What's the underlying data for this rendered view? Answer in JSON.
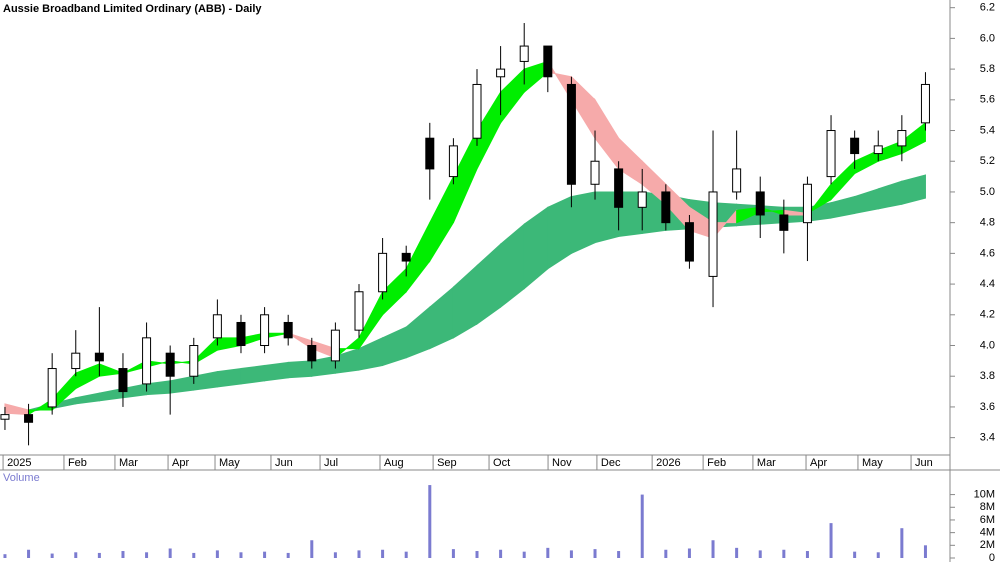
{
  "chart_data": {
    "type": "candlestick",
    "title": "Aussie Broadband Limited Ordinary (ABB) - Daily",
    "volume_label": "Volume",
    "categories": [
      null,
      null,
      null,
      null,
      null,
      null,
      null,
      null,
      null,
      null,
      null,
      null,
      null,
      null,
      null,
      null,
      null,
      null,
      null,
      null,
      null,
      null,
      null,
      null,
      null,
      null,
      null,
      null,
      null,
      null,
      null,
      null,
      null,
      null,
      null,
      null,
      null,
      null,
      null,
      null
    ],
    "open": [
      3.52,
      3.55,
      3.6,
      3.85,
      3.95,
      3.85,
      3.75,
      3.95,
      3.8,
      4.05,
      4.15,
      4.0,
      4.15,
      4.0,
      3.9,
      4.1,
      4.35,
      4.6,
      5.35,
      5.1,
      5.35,
      5.75,
      5.85,
      5.95,
      5.7,
      5.05,
      5.15,
      4.9,
      5.0,
      4.8,
      4.45,
      5.0,
      5.0,
      4.85,
      4.8,
      5.1,
      5.35,
      5.25,
      5.3,
      5.45
    ],
    "high": [
      3.6,
      3.62,
      3.95,
      4.1,
      4.25,
      3.95,
      4.15,
      4.0,
      4.05,
      4.3,
      4.2,
      4.25,
      4.2,
      4.05,
      4.15,
      4.4,
      4.7,
      4.65,
      5.45,
      5.35,
      5.8,
      5.95,
      6.1,
      5.95,
      5.75,
      5.4,
      5.2,
      5.15,
      5.05,
      4.85,
      5.4,
      5.4,
      5.1,
      4.95,
      5.1,
      5.5,
      5.4,
      5.4,
      5.5,
      5.78
    ],
    "low": [
      3.45,
      3.35,
      3.55,
      3.8,
      3.8,
      3.6,
      3.7,
      3.55,
      3.75,
      4.0,
      3.95,
      3.95,
      4.0,
      3.85,
      3.85,
      4.05,
      4.3,
      4.45,
      4.95,
      5.05,
      5.3,
      5.5,
      5.7,
      5.65,
      4.9,
      4.95,
      4.75,
      4.75,
      4.75,
      4.5,
      4.25,
      4.95,
      4.7,
      4.6,
      4.55,
      5.05,
      5.15,
      5.2,
      5.2,
      5.4
    ],
    "close": [
      3.55,
      3.5,
      3.85,
      3.95,
      3.9,
      3.7,
      4.05,
      3.8,
      4.0,
      4.2,
      4.0,
      4.2,
      4.05,
      3.9,
      4.1,
      4.35,
      4.6,
      4.55,
      5.15,
      5.3,
      5.7,
      5.8,
      5.95,
      5.75,
      5.05,
      5.2,
      4.9,
      5.0,
      4.8,
      4.55,
      5.0,
      5.15,
      4.85,
      4.75,
      5.05,
      5.4,
      5.25,
      5.3,
      5.4,
      5.7
    ],
    "fast_band": {
      "up_color": "#00ee00",
      "down_color": "#f6aaaa",
      "a": [
        3.56,
        3.55,
        3.65,
        3.82,
        3.88,
        3.82,
        3.9,
        3.88,
        3.9,
        4.05,
        4.05,
        4.08,
        4.08,
        3.98,
        3.92,
        4.05,
        4.35,
        4.5,
        4.8,
        5.1,
        5.4,
        5.65,
        5.8,
        5.85,
        5.6,
        5.35,
        5.15,
        5.05,
        4.92,
        4.75,
        4.7,
        4.88,
        4.9,
        4.85,
        4.85,
        5.05,
        5.2,
        5.27,
        5.33,
        5.45
      ],
      "b": [
        3.62,
        3.58,
        3.58,
        3.72,
        3.8,
        3.82,
        3.86,
        3.9,
        3.88,
        3.97,
        4.0,
        4.05,
        4.08,
        4.03,
        3.98,
        3.98,
        4.2,
        4.35,
        4.55,
        4.8,
        5.15,
        5.45,
        5.65,
        5.78,
        5.75,
        5.6,
        5.35,
        5.2,
        5.05,
        4.9,
        4.8,
        4.8,
        4.87,
        4.88,
        4.86,
        4.95,
        5.12,
        5.2,
        5.25,
        5.33
      ]
    },
    "slow_band": {
      "up_color": "#3cb878",
      "down_color": "#f26522",
      "a": [
        3.57,
        3.58,
        3.62,
        3.66,
        3.69,
        3.72,
        3.75,
        3.77,
        3.8,
        3.83,
        3.85,
        3.87,
        3.89,
        3.9,
        3.93,
        3.98,
        4.05,
        4.12,
        4.25,
        4.38,
        4.52,
        4.66,
        4.79,
        4.9,
        4.97,
        5.0,
        5.0,
        5.0,
        4.98,
        4.95,
        4.93,
        4.92,
        4.91,
        4.9,
        4.9,
        4.93,
        4.97,
        5.02,
        5.07,
        5.11
      ],
      "b": [
        3.56,
        3.57,
        3.59,
        3.62,
        3.64,
        3.66,
        3.68,
        3.69,
        3.71,
        3.73,
        3.75,
        3.77,
        3.79,
        3.8,
        3.82,
        3.84,
        3.87,
        3.92,
        3.98,
        4.05,
        4.14,
        4.25,
        4.37,
        4.5,
        4.6,
        4.67,
        4.71,
        4.73,
        4.75,
        4.76,
        4.77,
        4.78,
        4.79,
        4.8,
        4.81,
        4.83,
        4.86,
        4.89,
        4.92,
        4.96
      ]
    },
    "volume": [
      600000,
      1300000,
      700000,
      900000,
      800000,
      1100000,
      900000,
      1500000,
      800000,
      1200000,
      900000,
      1000000,
      800000,
      2800000,
      900000,
      1200000,
      1300000,
      1000000,
      11500000,
      1400000,
      1100000,
      1300000,
      1000000,
      1600000,
      1200000,
      1400000,
      1100000,
      10000000,
      1300000,
      1500000,
      2800000,
      1600000,
      1200000,
      1300000,
      1100000,
      5500000,
      1000000,
      900000,
      4700000,
      2000000
    ],
    "volume_color": "#7b7bd0",
    "xlim": [
      -0.21,
      40.04
    ],
    "xticks": [
      {
        "value": -0.08,
        "label": "2025"
      },
      {
        "value": 2.5,
        "label": "Feb"
      },
      {
        "value": 4.66,
        "label": "Mar"
      },
      {
        "value": 6.91,
        "label": "Apr"
      },
      {
        "value": 8.9,
        "label": "May"
      },
      {
        "value": 11.27,
        "label": "Jun"
      },
      {
        "value": 13.35,
        "label": "Jul"
      },
      {
        "value": 15.89,
        "label": "Aug"
      },
      {
        "value": 18.14,
        "label": "Sep"
      },
      {
        "value": 20.51,
        "label": "Oct"
      },
      {
        "value": 23.01,
        "label": "Nov"
      },
      {
        "value": 25.08,
        "label": "Dec"
      },
      {
        "value": 27.42,
        "label": "2026"
      },
      {
        "value": 29.58,
        "label": "Feb"
      },
      {
        "value": 31.69,
        "label": "Mar"
      },
      {
        "value": 33.94,
        "label": "Apr"
      },
      {
        "value": 36.14,
        "label": "May"
      },
      {
        "value": 38.39,
        "label": "Jun"
      }
    ],
    "ylim": [
      3.3,
      6.25
    ],
    "yticks": [
      3.4,
      3.6,
      3.8,
      {
        "value": 4,
        "label": "4.0"
      },
      4.2,
      4.4,
      4.6,
      4.8,
      {
        "value": 5,
        "label": "5.0"
      },
      5.2,
      5.4,
      5.6,
      5.8,
      {
        "value": 6,
        "label": "6.0"
      },
      6.2
    ],
    "vlim": [
      0,
      12300000
    ],
    "vticks": [
      0,
      {
        "value": 2000000,
        "label": "2M"
      },
      {
        "value": 4000000,
        "label": "4M"
      },
      {
        "value": 6000000,
        "label": "6M"
      },
      {
        "value": 8000000,
        "label": "8M"
      },
      {
        "value": 10000000,
        "label": "10M"
      }
    ]
  }
}
